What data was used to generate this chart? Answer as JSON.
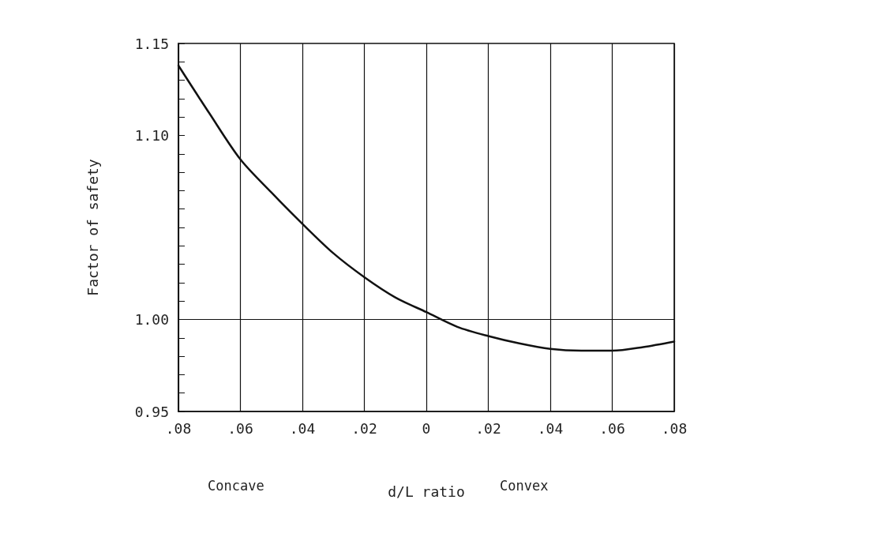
{
  "chart_data": {
    "type": "line",
    "xlabel": "d/L ratio",
    "ylabel": "Factor of safety",
    "annotations": [
      "Concave",
      "Convex"
    ],
    "x": [
      -0.08,
      -0.07,
      -0.06,
      -0.05,
      -0.04,
      -0.03,
      -0.02,
      -0.01,
      0,
      0.01,
      0.02,
      0.03,
      0.04,
      0.05,
      0.06,
      0.07,
      0.08
    ],
    "series": [
      {
        "color": "#111111",
        "values": [
          1.138,
          1.112,
          1.087,
          1.069,
          1.052,
          1.036,
          1.023,
          1.012,
          1.004,
          0.996,
          0.991,
          0.987,
          0.984,
          0.983,
          0.983,
          0.985,
          0.988
        ]
      }
    ],
    "xlim": [
      -0.08,
      0.08
    ],
    "xticks": [
      {
        "value": -0.08,
        "label": ".08"
      },
      {
        "value": -0.06,
        "label": ".06"
      },
      {
        "value": -0.04,
        "label": ".04"
      },
      {
        "value": -0.02,
        "label": ".02"
      },
      0,
      {
        "value": 0.02,
        "label": ".02"
      },
      {
        "value": 0.04,
        "label": ".04"
      },
      {
        "value": 0.06,
        "label": ".06"
      },
      {
        "value": 0.08,
        "label": ".08"
      }
    ],
    "ylim": [
      0.95,
      1.15
    ],
    "yticks": [
      {
        "value": 0.95,
        "label": "0.95"
      },
      {
        "value": 0.96,
        "label": null
      },
      {
        "value": 0.97,
        "label": null
      },
      {
        "value": 0.98,
        "label": null
      },
      {
        "value": 0.99,
        "label": null
      },
      {
        "value": 1,
        "label": "1.00"
      },
      {
        "value": 1.01,
        "label": null
      },
      {
        "value": 1.02,
        "label": null
      },
      {
        "value": 1.03,
        "label": null
      },
      {
        "value": 1.04,
        "label": null
      },
      {
        "value": 1.05,
        "label": null
      },
      {
        "value": 1.06,
        "label": null
      },
      {
        "value": 1.07,
        "label": null
      },
      {
        "value": 1.08,
        "label": null
      },
      {
        "value": 1.09,
        "label": null
      },
      {
        "value": 1.1,
        "label": "1.10"
      },
      {
        "value": 1.11,
        "label": null
      },
      {
        "value": 1.12,
        "label": null
      },
      {
        "value": 1.13,
        "label": null
      },
      {
        "value": 1.14,
        "label": null
      },
      {
        "value": 1.15,
        "label": "1.15"
      }
    ],
    "grid": "x",
    "ref_lines": [
      {
        "axis": "y",
        "value": 1
      }
    ],
    "marker": "none",
    "line_style": "solid"
  }
}
